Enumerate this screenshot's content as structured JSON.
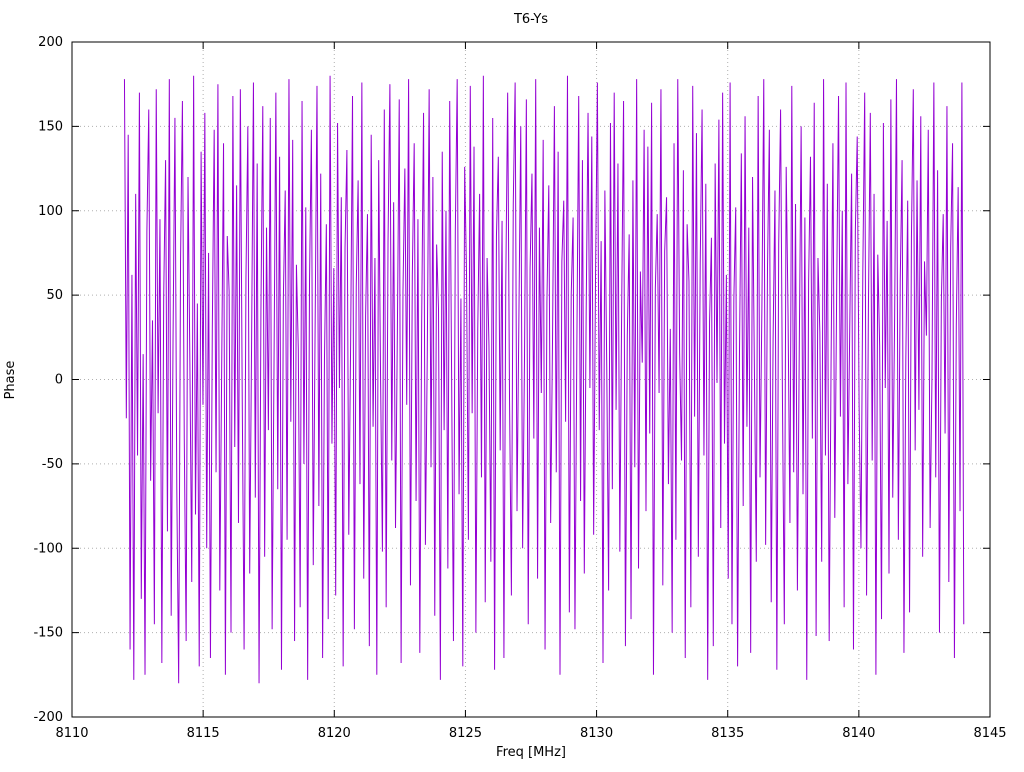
{
  "chart_data": {
    "type": "line",
    "title": "T6-Ys",
    "xlabel": "Freq [MHz]",
    "ylabel": "Phase",
    "xlim": [
      8110,
      8145
    ],
    "ylim": [
      -200,
      200
    ],
    "xticks": [
      8110,
      8115,
      8120,
      8125,
      8130,
      8135,
      8140,
      8145
    ],
    "yticks": [
      -200,
      -150,
      -100,
      -50,
      0,
      50,
      100,
      150,
      200
    ],
    "grid": true,
    "grid_color": "#b0b0b0",
    "border_color": "#000000",
    "legend_position": "none",
    "series": [
      {
        "name": "T6-Ys",
        "color": "#9400d3",
        "x_start": 8112.0,
        "x_end": 8144.0,
        "values": [
          178,
          -23,
          145,
          -160,
          62,
          -178,
          110,
          -45,
          170,
          -130,
          15,
          -175,
          88,
          160,
          -60,
          35,
          -145,
          172,
          -20,
          95,
          -168,
          50,
          130,
          -90,
          178,
          -140,
          25,
          155,
          -65,
          -180,
          70,
          165,
          -35,
          -155,
          120,
          10,
          -120,
          180,
          -80,
          45,
          -170,
          135,
          -15,
          158,
          -100,
          75,
          -165,
          30,
          148,
          -55,
          175,
          -125,
          5,
          140,
          -175,
          85,
          52,
          -150,
          168,
          -40,
          115,
          -85,
          172,
          -10,
          -160,
          60,
          150,
          -115,
          20,
          176,
          -70,
          128,
          -180,
          40,
          162,
          -105,
          90,
          -30,
          155,
          -148,
          8,
          170,
          -65,
          132,
          -172,
          48,
          112,
          -95,
          178,
          -25,
          142,
          -155,
          68,
          18,
          -135,
          165,
          -50,
          102,
          -178,
          58,
          148,
          -110,
          32,
          174,
          -75,
          122,
          -165,
          12,
          92,
          -142,
          180,
          -38,
          66,
          -128,
          152,
          -5,
          108,
          -170,
          78,
          136,
          -92,
          22,
          168,
          -148,
          55,
          118,
          -62,
          176,
          -118,
          38,
          98,
          -158,
          145,
          -28,
          72,
          -175,
          130,
          2,
          -102,
          160,
          -135,
          82,
          175,
          -48,
          105,
          -88,
          28,
          166,
          -168,
          52,
          125,
          -15,
          178,
          -122,
          62,
          140,
          -72,
          95,
          -162,
          35,
          158,
          -98,
          15,
          172,
          -52,
          120,
          -140,
          80,
          42,
          -178,
          135,
          -30,
          100,
          -112,
          165,
          5,
          -155,
          88,
          178,
          -68,
          48,
          -170,
          126,
          62,
          -95,
          174,
          -20,
          138,
          -150,
          30,
          110,
          -58,
          180,
          -132,
          72,
          20,
          -108,
          155,
          -172,
          85,
          132,
          -42,
          94,
          -165,
          58,
          170,
          -12,
          -128,
          104,
          176,
          -78,
          36,
          150,
          -100,
          12,
          166,
          -145,
          66,
          122,
          -35,
          178,
          -118,
          90,
          -8,
          142,
          -160,
          46,
          115,
          -85,
          24,
          162,
          -55,
          135,
          -175,
          70,
          106,
          -25,
          180,
          -138,
          50,
          96,
          -148,
          18,
          168,
          -72,
          130,
          -115,
          40,
          158,
          -5,
          144,
          -92,
          60,
          176,
          -30,
          82,
          -168,
          112,
          8,
          -125,
          152,
          -65,
          170,
          -18,
          128,
          -102,
          44,
          165,
          -158,
          26,
          86,
          -142,
          118,
          -52,
          178,
          -112,
          64,
          10,
          148,
          -78,
          138,
          -32,
          164,
          -175,
          54,
          98,
          -8,
          172,
          -122,
          76,
          108,
          -62,
          30,
          -150,
          140,
          -95,
          178,
          16,
          -48,
          124,
          -165,
          92,
          58,
          -135,
          174,
          -22,
          146,
          -105,
          68,
          160,
          -45,
          116,
          -178,
          34,
          84,
          -158,
          128,
          -2,
          154,
          -88,
          170,
          -38,
          62,
          -118,
          176,
          -145,
          48,
          102,
          -170,
          14,
          134,
          -75,
          156,
          -28,
          90,
          -162,
          120,
          6,
          -108,
          168,
          -58,
          42,
          178,
          -98,
          66,
          148,
          -132,
          24,
          112,
          -172,
          80,
          160,
          -12,
          -145,
          126,
          38,
          -85,
          174,
          -55,
          104,
          -125,
          18,
          150,
          -68,
          96,
          -178,
          58,
          132,
          -35,
          164,
          -152,
          72,
          28,
          -108,
          178,
          -45,
          116,
          -155,
          8,
          140,
          -82,
          52,
          168,
          -22,
          100,
          -135,
          176,
          -62,
          30,
          122,
          -160,
          88,
          144,
          -15,
          -100,
          64,
          170,
          -128,
          44,
          158,
          -48,
          110,
          -175,
          74,
          20,
          -142,
          152,
          -5,
          94,
          -115,
          166,
          -70,
          36,
          178,
          -95,
          58,
          130,
          -162,
          12,
          106,
          -138,
          84,
          172,
          -42,
          118,
          -18,
          156,
          -105,
          70,
          26,
          148,
          -88,
          2,
          176,
          -58,
          124,
          -150,
          46,
          98,
          -32,
          162,
          -120,
          78,
          140,
          -165,
          32,
          114,
          -78,
          176,
          -145
        ]
      }
    ]
  }
}
